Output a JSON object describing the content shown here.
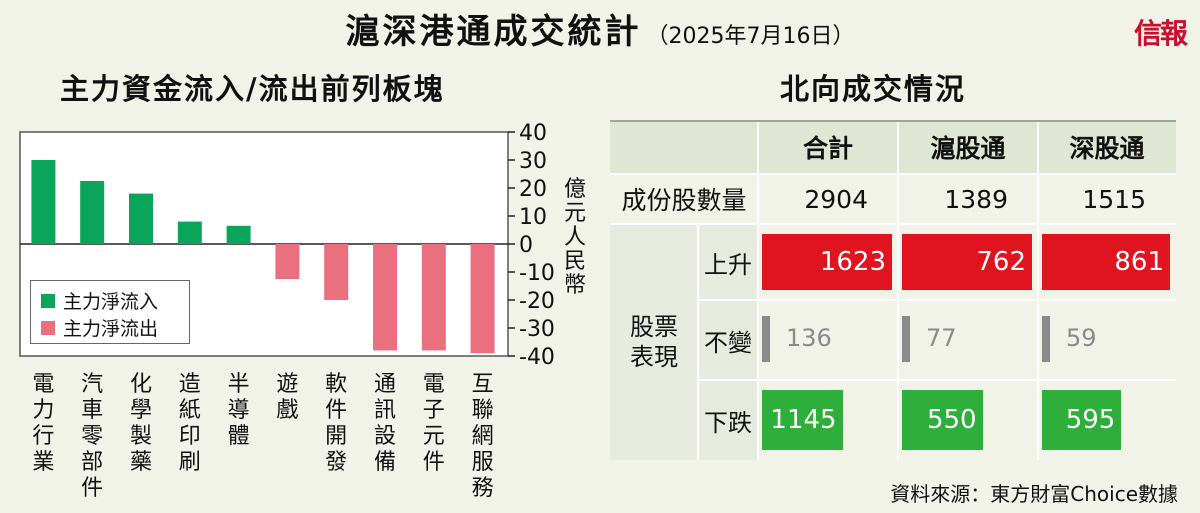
{
  "title": "滬深港通成交統計",
  "date": "（2025年7月16日）",
  "brand": "信報",
  "source": "資料來源：東方財富Choice數據",
  "left_chart": {
    "subtitle": "主力資金流入/流出前列板塊",
    "y_unit": "億元人民幣"
  },
  "right_table": {
    "subtitle": "北向成交情況",
    "columns": [
      "合計",
      "滬股通",
      "深股通"
    ],
    "constituents_label": "成份股數量",
    "constituents": [
      2904,
      1389,
      1515
    ],
    "group_label": "股票表現",
    "rows": [
      {
        "label": "上升",
        "values": [
          1623,
          762,
          861
        ],
        "color": "#e0141e"
      },
      {
        "label": "不變",
        "values": [
          136,
          77,
          59
        ],
        "color": "#8a8a8a"
      },
      {
        "label": "下跌",
        "values": [
          1145,
          550,
          595
        ],
        "color": "#2eae3b"
      }
    ]
  },
  "chart_data": {
    "type": "bar",
    "title": "主力資金流入/流出前列板塊",
    "ylabel": "億元人民幣",
    "ylim": [
      -40,
      40
    ],
    "yticks": [
      40,
      30,
      20,
      10,
      0,
      -10,
      -20,
      -30,
      -40
    ],
    "categories": [
      "電力行業",
      "汽車零部件",
      "化學製藥",
      "造紙印刷",
      "半導體",
      "遊戲",
      "軟件開發",
      "通訊設備",
      "電子元件",
      "互聯網服務"
    ],
    "values": [
      30,
      22.5,
      18,
      8,
      6.5,
      -12.5,
      -20,
      -38,
      -38,
      -39
    ],
    "legend": [
      {
        "name": "主力淨流入",
        "color": "#0aa55a"
      },
      {
        "name": "主力淨流出",
        "color": "#ea6f7f"
      }
    ],
    "legend_position": "bottom-left"
  }
}
